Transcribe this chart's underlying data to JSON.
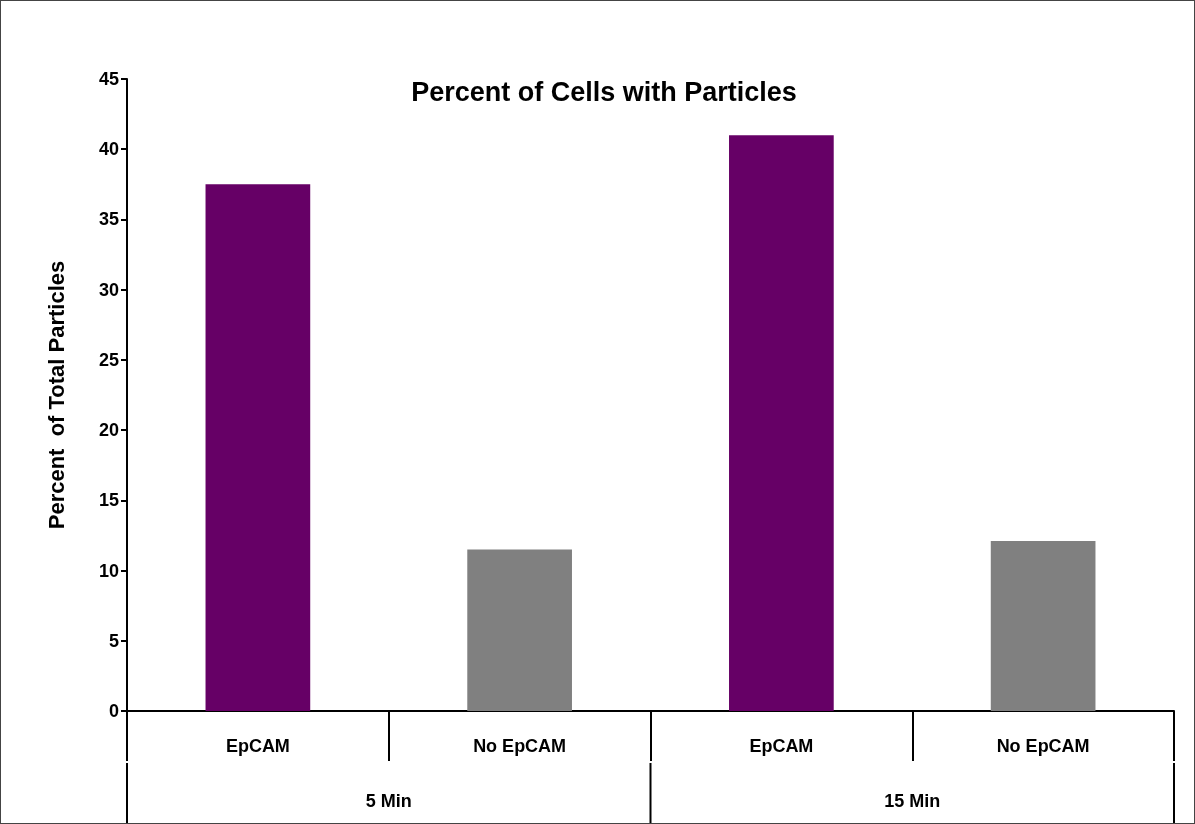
{
  "chart_data": {
    "type": "bar",
    "title": "Percent of Cells with Particles",
    "ylabel": "Percent  of Total Particles",
    "categories": [
      "EpCAM",
      "No EpCAM",
      "EpCAM",
      "No EpCAM"
    ],
    "values": [
      37.5,
      11.5,
      41,
      12.1
    ],
    "colors": [
      "#660066",
      "#808080",
      "#660066",
      "#808080"
    ],
    "ylim": [
      0,
      45
    ],
    "yticks": [
      0,
      5,
      10,
      15,
      20,
      25,
      30,
      35,
      40,
      45
    ],
    "annotations": [
      "5 Min",
      "15 Min"
    ],
    "grid": false
  }
}
